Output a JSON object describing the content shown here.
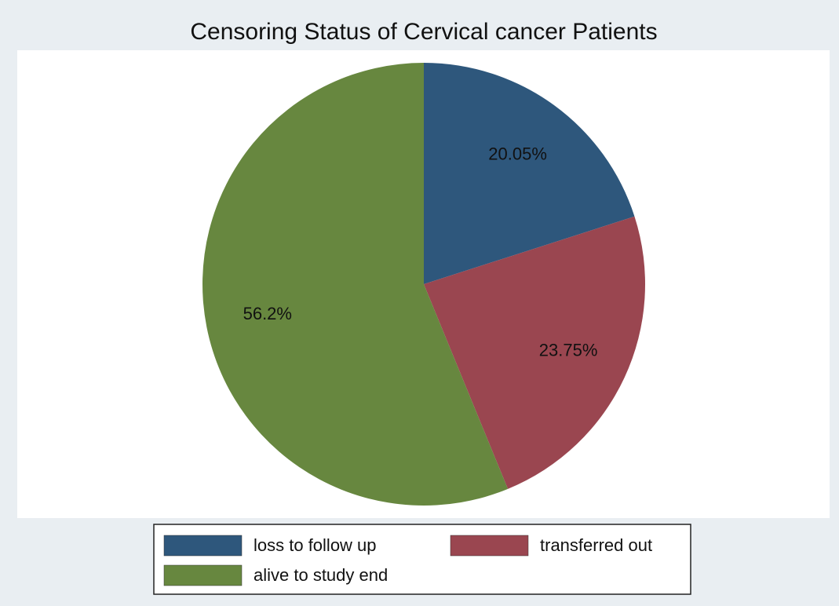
{
  "chart_data": {
    "type": "pie",
    "title": "Censoring Status of Cervical cancer Patients",
    "categories": [
      "loss to follow up",
      "transferred out",
      "alive to study end"
    ],
    "values": [
      20.05,
      23.75,
      56.2
    ],
    "value_labels": [
      "20.05%",
      "23.75%",
      "56.2%"
    ],
    "colors": [
      "#2e577c",
      "#9a4650",
      "#67873f"
    ],
    "legend": "bottom"
  }
}
